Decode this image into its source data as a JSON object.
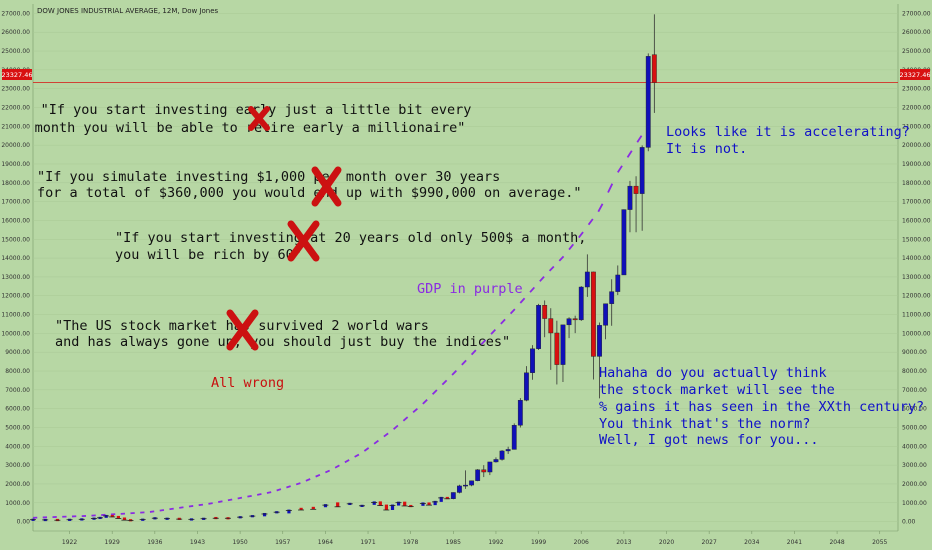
{
  "title": "DOW JONES INDUSTRIAL AVERAGE, 12M, Dow Jones",
  "price_label": "23327.46",
  "colors": {
    "background": "#b7d7a4",
    "up": "#1010b8",
    "down": "#d81010",
    "gdp": "#8a2be2",
    "price_line": "#d81010"
  },
  "annotations": {
    "quote1_line1": "\"If you start investing early just a little bit every",
    "quote1_line2": "month you will be able to retire early a millionaire\"",
    "quote2_line1": "\"If you simulate investing $1,000 per month over 30 years",
    "quote2_line2": "for a total of $360,000 you would end up with $990,000 on average.\"",
    "quote3_line1": "\"If you start investing at 20 years old only 500$ a month,",
    "quote3_line2": "you will be rich by 60\"",
    "quote4_line1": "\"The US stock market has survived 2 world wars",
    "quote4_line2": "and has always gone up, you should just buy the indices\"",
    "all_wrong": "All wrong",
    "gdp_label": "GDP in purple",
    "accel_line1": "Looks like it is accelerating?",
    "accel_line2": "It is not.",
    "haha_line1": "Hahaha do you actually think",
    "haha_line2": "the stock market will see the",
    "haha_line3": "% gains it has seen in the XXth century?",
    "haha_line4": "You think that's the norm?",
    "haha_line5": "Well, I got news for you..."
  },
  "chart_data": {
    "type": "candlestick",
    "title": "DOW JONES INDUSTRIAL AVERAGE, 12M, Dow Jones",
    "xlim": [
      1916,
      2058
    ],
    "ylim": [
      -500,
      27500
    ],
    "x_ticks": [
      "1922",
      "1929",
      "1936",
      "1943",
      "1950",
      "1957",
      "1964",
      "1971",
      "1978",
      "1985",
      "1992",
      "1999",
      "2006",
      "2013",
      "2020",
      "2027",
      "2034",
      "2041",
      "2048",
      "2055"
    ],
    "y_ticks": [
      "27000.00",
      "26000.00",
      "25000.00",
      "24000.00",
      "23000.00",
      "22000.00",
      "21000.00",
      "20000.00",
      "19000.00",
      "18000.00",
      "17000.00",
      "16000.00",
      "15000.00",
      "14000.00",
      "13000.00",
      "12000.00",
      "11000.00",
      "10000.00",
      "9000.00",
      "8000.00",
      "7000.00",
      "6000.00",
      "5000.00",
      "4000.00",
      "3000.00",
      "2000.00",
      "1000.00",
      "0.00"
    ],
    "last_price": 23327.46,
    "years": [
      1985,
      1986,
      1987,
      1988,
      1989,
      1990,
      1991,
      1992,
      1993,
      1994,
      1995,
      1996,
      1997,
      1998,
      1999,
      2000,
      2001,
      2002,
      2003,
      2004,
      2005,
      2006,
      2007,
      2008,
      2009,
      2010,
      2011,
      2012,
      2013,
      2014,
      2015,
      2016,
      2017,
      2018
    ],
    "open": [
      1212,
      1547,
      1896,
      1939,
      2169,
      2753,
      2634,
      3169,
      3301,
      3754,
      3834,
      5117,
      6448,
      7908,
      9181,
      11497,
      10787,
      10021,
      8341,
      10453,
      10783,
      10718,
      12463,
      13264,
      8776,
      10428,
      11577,
      12218,
      13104,
      16577,
      17823,
      17425,
      19881,
      24809
    ],
    "close": [
      1547,
      1896,
      1939,
      2169,
      2753,
      2634,
      3169,
      3301,
      3754,
      3834,
      5117,
      6448,
      7908,
      9181,
      11497,
      10787,
      10021,
      8341,
      10453,
      10783,
      10718,
      12463,
      13264,
      8776,
      10428,
      11577,
      12218,
      13104,
      16577,
      17823,
      17425,
      19881,
      24719,
      23327
    ],
    "high": [
      1553,
      1955,
      2722,
      2183,
      2791,
      2999,
      3168,
      3413,
      3794,
      3978,
      5216,
      6560,
      8259,
      9374,
      11568,
      11750,
      11337,
      10673,
      10454,
      10854,
      10940,
      12510,
      14198,
      13279,
      10580,
      11585,
      12876,
      13610,
      16588,
      18103,
      18351,
      19987,
      24876,
      26951
    ],
    "low": [
      1185,
      1502,
      1738,
      1879,
      2144,
      2365,
      2470,
      3136,
      3242,
      3593,
      3832,
      5000,
      6391,
      7539,
      9120,
      9796,
      8062,
      7286,
      7416,
      9750,
      10012,
      10661,
      11939,
      7552,
      6547,
      9686,
      10404,
      12035,
      13104,
      15373,
      15370,
      15451,
      19677,
      21713
    ],
    "pre_bars": [
      {
        "x": 1916,
        "o": 95,
        "c": 100
      },
      {
        "x": 1918,
        "o": 80,
        "c": 90
      },
      {
        "x": 1920,
        "o": 90,
        "c": 72
      },
      {
        "x": 1922,
        "o": 80,
        "c": 98
      },
      {
        "x": 1924,
        "o": 95,
        "c": 120
      },
      {
        "x": 1926,
        "o": 155,
        "c": 160
      },
      {
        "x": 1927,
        "o": 160,
        "c": 200
      },
      {
        "x": 1928,
        "o": 200,
        "c": 300
      },
      {
        "x": 1929,
        "o": 300,
        "c": 248
      },
      {
        "x": 1930,
        "o": 248,
        "c": 164
      },
      {
        "x": 1931,
        "o": 164,
        "c": 77
      },
      {
        "x": 1932,
        "o": 77,
        "c": 60
      },
      {
        "x": 1934,
        "o": 99,
        "c": 104
      },
      {
        "x": 1936,
        "o": 144,
        "c": 180
      },
      {
        "x": 1938,
        "o": 120,
        "c": 155
      },
      {
        "x": 1940,
        "o": 150,
        "c": 131
      },
      {
        "x": 1942,
        "o": 110,
        "c": 119
      },
      {
        "x": 1944,
        "o": 136,
        "c": 152
      },
      {
        "x": 1946,
        "o": 193,
        "c": 177
      },
      {
        "x": 1948,
        "o": 181,
        "c": 177
      },
      {
        "x": 1950,
        "o": 200,
        "c": 235
      },
      {
        "x": 1952,
        "o": 269,
        "c": 292
      },
      {
        "x": 1954,
        "o": 280,
        "c": 404
      },
      {
        "x": 1956,
        "o": 488,
        "c": 500
      },
      {
        "x": 1958,
        "o": 436,
        "c": 584
      },
      {
        "x": 1960,
        "o": 679,
        "c": 616
      },
      {
        "x": 1962,
        "o": 731,
        "c": 652
      },
      {
        "x": 1964,
        "o": 763,
        "c": 874
      },
      {
        "x": 1966,
        "o": 969,
        "c": 786
      },
      {
        "x": 1968,
        "o": 905,
        "c": 944
      },
      {
        "x": 1970,
        "o": 800,
        "c": 839
      },
      {
        "x": 1972,
        "o": 890,
        "c": 1020
      },
      {
        "x": 1973,
        "o": 1020,
        "c": 851
      },
      {
        "x": 1974,
        "o": 851,
        "c": 616
      },
      {
        "x": 1975,
        "o": 616,
        "c": 852
      },
      {
        "x": 1976,
        "o": 852,
        "c": 1005
      },
      {
        "x": 1977,
        "o": 1005,
        "c": 831
      },
      {
        "x": 1978,
        "o": 831,
        "c": 805
      },
      {
        "x": 1980,
        "o": 838,
        "c": 964
      },
      {
        "x": 1981,
        "o": 964,
        "c": 875
      },
      {
        "x": 1982,
        "o": 875,
        "c": 1047
      },
      {
        "x": 1983,
        "o": 1047,
        "c": 1259
      },
      {
        "x": 1984,
        "o": 1259,
        "c": 1212
      }
    ],
    "gdp_series": {
      "name": "GDP",
      "x": [
        1916,
        1925,
        1935,
        1945,
        1955,
        1960,
        1965,
        1970,
        1975,
        1980,
        1985,
        1990,
        1995,
        2000,
        2003,
        2006,
        2009,
        2012,
        2014,
        2016
      ],
      "y": [
        150,
        250,
        450,
        900,
        1500,
        2000,
        2700,
        3600,
        4800,
        6200,
        7800,
        9500,
        11200,
        13000,
        14000,
        15200,
        16500,
        18500,
        19500,
        20500
      ]
    }
  }
}
